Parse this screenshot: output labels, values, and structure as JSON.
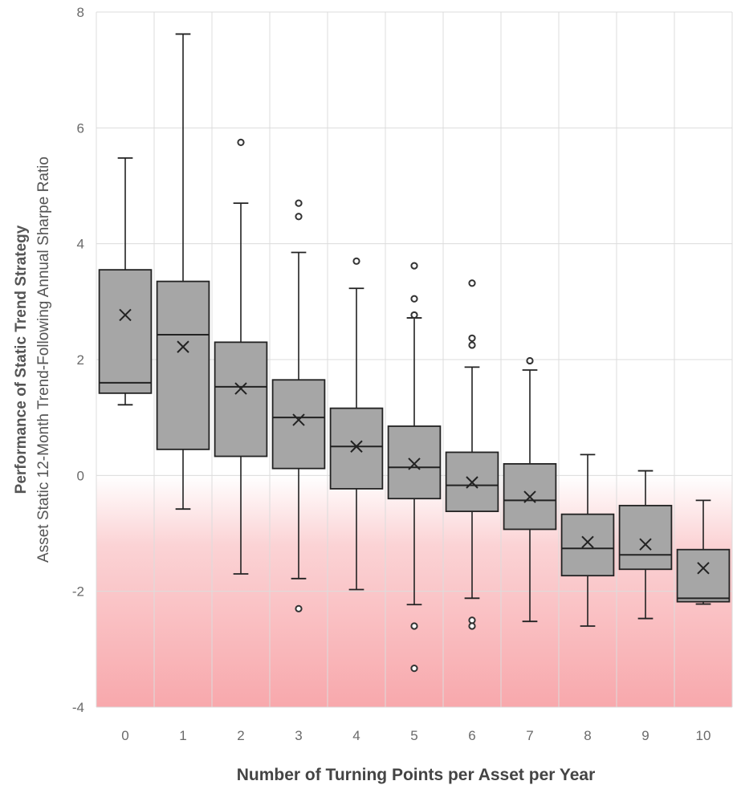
{
  "chart_data": {
    "type": "boxplot",
    "title": "",
    "xlabel": "Number of Turning Points per Asset per Year",
    "ylabel_line1": "Performance of Static Trend Strategy",
    "ylabel_line2": "Asset Static 12-Month Trend-Following Annual Sharpe Ratio",
    "ylim": [
      -4,
      8
    ],
    "yticks": [
      -4,
      -2,
      0,
      2,
      4,
      6,
      8
    ],
    "negative_region_shaded": true,
    "shade_color": "#f8a8ac",
    "box_color": "#a6a6a6",
    "categories": [
      "0",
      "1",
      "2",
      "3",
      "4",
      "5",
      "6",
      "7",
      "8",
      "9",
      "10"
    ],
    "boxes": [
      {
        "category": "0",
        "whisker_low": 1.22,
        "q1": 1.42,
        "median": 1.6,
        "q3": 3.55,
        "whisker_high": 5.48,
        "mean": 2.77,
        "outliers": []
      },
      {
        "category": "1",
        "whisker_low": -0.58,
        "q1": 0.45,
        "median": 2.43,
        "q3": 3.35,
        "whisker_high": 7.62,
        "mean": 2.22,
        "outliers": []
      },
      {
        "category": "2",
        "whisker_low": -1.7,
        "q1": 0.33,
        "median": 1.53,
        "q3": 2.3,
        "whisker_high": 4.7,
        "mean": 1.5,
        "outliers": [
          5.75
        ]
      },
      {
        "category": "3",
        "whisker_low": -1.78,
        "q1": 0.12,
        "median": 1.0,
        "q3": 1.65,
        "whisker_high": 3.85,
        "mean": 0.96,
        "outliers": [
          4.7,
          4.47,
          -2.3
        ]
      },
      {
        "category": "4",
        "whisker_low": -1.97,
        "q1": -0.23,
        "median": 0.5,
        "q3": 1.16,
        "whisker_high": 3.23,
        "mean": 0.5,
        "outliers": [
          3.7
        ]
      },
      {
        "category": "5",
        "whisker_low": -2.23,
        "q1": -0.4,
        "median": 0.14,
        "q3": 0.85,
        "whisker_high": 2.72,
        "mean": 0.2,
        "outliers": [
          3.62,
          3.05,
          2.77,
          -2.6,
          -3.33
        ]
      },
      {
        "category": "6",
        "whisker_low": -2.12,
        "q1": -0.62,
        "median": -0.17,
        "q3": 0.4,
        "whisker_high": 1.87,
        "mean": -0.12,
        "outliers": [
          3.32,
          2.37,
          2.25,
          -2.5,
          -2.6
        ]
      },
      {
        "category": "7",
        "whisker_low": -2.52,
        "q1": -0.93,
        "median": -0.43,
        "q3": 0.2,
        "whisker_high": 1.82,
        "mean": -0.37,
        "outliers": [
          1.98
        ]
      },
      {
        "category": "8",
        "whisker_low": -2.6,
        "q1": -1.73,
        "median": -1.26,
        "q3": -0.67,
        "whisker_high": 0.36,
        "mean": -1.15,
        "outliers": []
      },
      {
        "category": "9",
        "whisker_low": -2.47,
        "q1": -1.62,
        "median": -1.37,
        "q3": -0.52,
        "whisker_high": 0.08,
        "mean": -1.19,
        "outliers": []
      },
      {
        "category": "10",
        "whisker_low": -2.22,
        "q1": -2.18,
        "median": -2.12,
        "q3": -1.28,
        "whisker_high": -0.43,
        "mean": -1.6,
        "outliers": []
      }
    ]
  }
}
